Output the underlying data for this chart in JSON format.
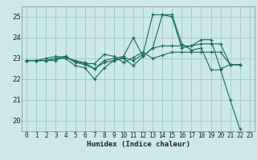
{
  "xlabel": "Humidex (Indice chaleur)",
  "background_color": "#cce8e8",
  "grid_color": "#aacccc",
  "line_color": "#1a6b5a",
  "xlim": [
    -0.5,
    23.5
  ],
  "ylim": [
    19.5,
    25.5
  ],
  "xticks": [
    0,
    1,
    2,
    3,
    4,
    5,
    6,
    7,
    8,
    9,
    10,
    11,
    12,
    13,
    14,
    15,
    16,
    17,
    18,
    19,
    20,
    21,
    22,
    23
  ],
  "yticks": [
    20,
    21,
    22,
    23,
    24,
    25
  ],
  "series": [
    [
      22.9,
      22.9,
      22.9,
      23.0,
      23.0,
      22.65,
      22.55,
      22.0,
      22.55,
      22.9,
      23.0,
      22.65,
      23.1,
      23.5,
      25.1,
      25.1,
      23.7,
      23.4,
      23.5,
      22.45,
      22.45,
      21.0,
      19.6
    ],
    [
      22.9,
      22.9,
      22.9,
      23.0,
      23.1,
      22.8,
      22.7,
      22.5,
      22.8,
      22.9,
      23.05,
      22.9,
      23.2,
      25.1,
      25.1,
      25.0,
      23.5,
      23.6,
      23.9,
      23.9,
      22.5,
      22.7,
      22.7
    ],
    [
      22.9,
      22.9,
      23.0,
      23.1,
      23.05,
      22.9,
      22.8,
      22.5,
      22.9,
      23.0,
      23.1,
      24.0,
      23.1,
      23.5,
      23.6,
      23.6,
      23.6,
      23.6,
      23.7,
      23.7,
      23.7,
      22.7,
      22.7
    ],
    [
      22.9,
      22.9,
      22.9,
      22.9,
      23.1,
      22.85,
      22.75,
      22.75,
      23.2,
      23.1,
      22.8,
      23.05,
      23.3,
      23.0,
      23.15,
      23.3,
      23.3,
      23.3,
      23.3,
      23.3,
      23.3,
      22.7,
      22.7
    ]
  ]
}
